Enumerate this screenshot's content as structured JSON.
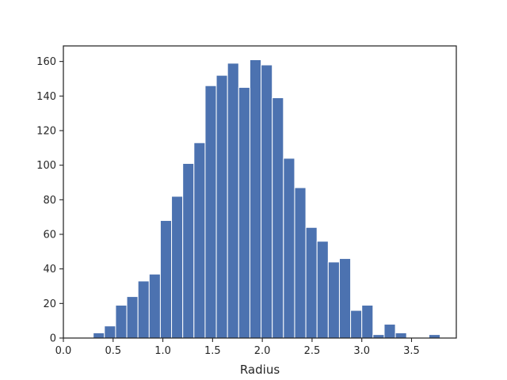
{
  "chart_data": {
    "type": "bar",
    "title": "",
    "xlabel": "Radius",
    "ylabel": "",
    "xlim": [
      0.0,
      3.95
    ],
    "ylim": [
      0,
      169
    ],
    "grid": false,
    "legend": "none",
    "bar_color": "#4c72b0",
    "bin_start": 0.3,
    "bin_width": 0.1125,
    "values": [
      3,
      7,
      19,
      24,
      33,
      37,
      68,
      82,
      101,
      113,
      146,
      152,
      159,
      145,
      161,
      158,
      139,
      104,
      87,
      64,
      56,
      44,
      46,
      16,
      19,
      2,
      8,
      3,
      0,
      0,
      2
    ],
    "xticks": [
      {
        "value": 0.0,
        "label": "0.0"
      },
      {
        "value": 0.5,
        "label": "0.5"
      },
      {
        "value": 1.0,
        "label": "1.0"
      },
      {
        "value": 1.5,
        "label": "1.5"
      },
      {
        "value": 2.0,
        "label": "2.0"
      },
      {
        "value": 2.5,
        "label": "2.5"
      },
      {
        "value": 3.0,
        "label": "3.0"
      },
      {
        "value": 3.5,
        "label": "3.5"
      }
    ],
    "yticks": [
      {
        "value": 0,
        "label": "0"
      },
      {
        "value": 20,
        "label": "20"
      },
      {
        "value": 40,
        "label": "40"
      },
      {
        "value": 60,
        "label": "60"
      },
      {
        "value": 80,
        "label": "80"
      },
      {
        "value": 100,
        "label": "100"
      },
      {
        "value": 120,
        "label": "120"
      },
      {
        "value": 140,
        "label": "140"
      },
      {
        "value": 160,
        "label": "160"
      }
    ]
  }
}
